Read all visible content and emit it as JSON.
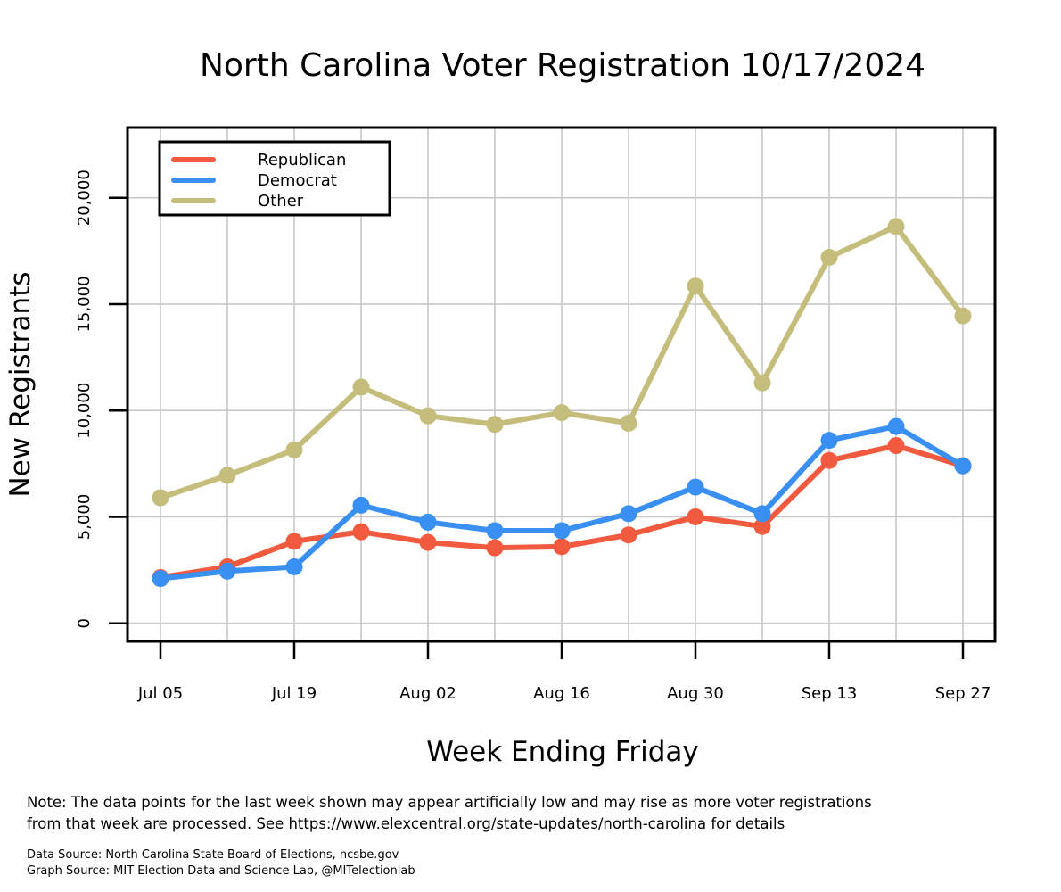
{
  "chart_data": {
    "type": "line",
    "title": "North Carolina Voter Registration 10/17/2024",
    "xlabel": "Week Ending Friday",
    "ylabel": "New Registrants",
    "x": [
      "Jul 05",
      "Jul 12",
      "Jul 19",
      "Jul 26",
      "Aug 02",
      "Aug 09",
      "Aug 16",
      "Aug 23",
      "Aug 30",
      "Sep 06",
      "Sep 13",
      "Sep 20",
      "Sep 27"
    ],
    "x_tick_labels": [
      "Jul 05",
      "Jul 19",
      "Aug 02",
      "Aug 16",
      "Aug 30",
      "Sep 13",
      "Sep 27"
    ],
    "y_ticks": [
      0,
      5000,
      10000,
      15000,
      20000
    ],
    "y_tick_labels": [
      "0",
      "5,000",
      "10,000",
      "15,000",
      "20,000"
    ],
    "ylim": [
      -850,
      23300
    ],
    "grid": true,
    "legend_position": "top-left",
    "series": [
      {
        "name": "Republican",
        "color": "#f25a3f",
        "values": [
          2150,
          2650,
          3850,
          4300,
          3800,
          3550,
          3600,
          4150,
          5000,
          4550,
          7650,
          8350,
          7400
        ]
      },
      {
        "name": "Democrat",
        "color": "#3a8ff2",
        "values": [
          2100,
          2450,
          2650,
          5550,
          4750,
          4350,
          4350,
          5150,
          6400,
          5150,
          8600,
          9250,
          7400
        ]
      },
      {
        "name": "Other",
        "color": "#c4bd7b",
        "values": [
          5900,
          6950,
          8150,
          11100,
          9750,
          9350,
          9900,
          9400,
          15850,
          11300,
          17200,
          18650,
          14450
        ]
      }
    ]
  },
  "notes": {
    "line1": "Note: The data points for the last week shown may appear artificially low and may rise as more voter registrations",
    "line2": "from that week are processed. See https://www.elexcentral.org/state-updates/north-carolina for details"
  },
  "sources": {
    "data_source": "Data Source: North Carolina State Board of Elections, ncsbe.gov",
    "graph_source": "Graph Source: MIT Election Data and Science Lab, @MITelectionlab"
  }
}
